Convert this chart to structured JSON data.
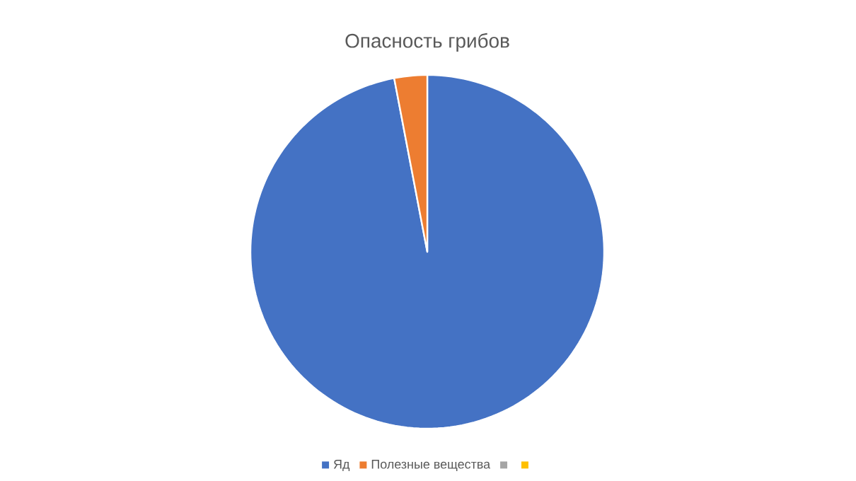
{
  "chart_data": {
    "type": "pie",
    "title": "Опасность грибов",
    "categories": [
      "Яд",
      "Полезные вещества",
      null,
      null
    ],
    "values": [
      97,
      3,
      0,
      0
    ],
    "colors": [
      "#4472c4",
      "#ed7d31",
      "#a5a5a5",
      "#ffc000"
    ],
    "legend": "bottom"
  }
}
